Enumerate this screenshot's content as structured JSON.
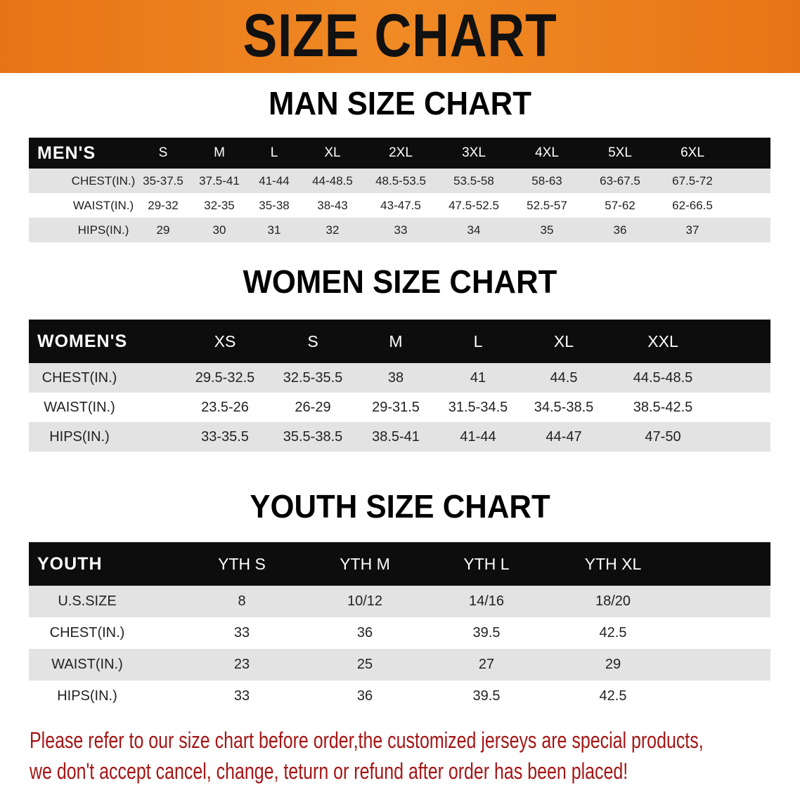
{
  "banner": {
    "title": "SIZE CHART",
    "color": "#ee8020"
  },
  "sections": [
    {
      "title": "MAN SIZE CHART",
      "header": [
        "MEN'S",
        "S",
        "M",
        "L",
        "XL",
        "2XL",
        "3XL",
        "4XL",
        "5XL",
        "6XL"
      ],
      "rows": [
        [
          "CHEST(IN.)",
          "35-37.5",
          "37.5-41",
          "41-44",
          "44-48.5",
          "48.5-53.5",
          "53.5-58",
          "58-63",
          "63-67.5",
          "67.5-72"
        ],
        [
          "WAIST(IN.)",
          "29-32",
          "32-35",
          "35-38",
          "38-43",
          "43-47.5",
          "47.5-52.5",
          "52.5-57",
          "57-62",
          "62-66.5"
        ],
        [
          "HIPS(IN.)",
          "29",
          "30",
          "31",
          "32",
          "33",
          "34",
          "35",
          "36",
          "37"
        ]
      ]
    },
    {
      "title": "WOMEN SIZE CHART",
      "header": [
        "WOMEN'S",
        "XS",
        "S",
        "M",
        "L",
        "XL",
        "XXL"
      ],
      "rows": [
        [
          "CHEST(IN.)",
          "29.5-32.5",
          "32.5-35.5",
          "38",
          "41",
          "44.5",
          "44.5-48.5"
        ],
        [
          "WAIST(IN.)",
          "23.5-26",
          "26-29",
          "29-31.5",
          "31.5-34.5",
          "34.5-38.5",
          "38.5-42.5"
        ],
        [
          "HIPS(IN.)",
          "33-35.5",
          "35.5-38.5",
          "38.5-41",
          "41-44",
          "44-47",
          "47-50"
        ]
      ]
    },
    {
      "title": "YOUTH SIZE CHART",
      "header": [
        "YOUTH",
        "YTH S",
        "YTH M",
        "YTH L",
        "YTH XL"
      ],
      "rows": [
        [
          "U.S.SIZE",
          "8",
          "10/12",
          "14/16",
          "18/20"
        ],
        [
          "CHEST(IN.)",
          "33",
          "36",
          "39.5",
          "42.5"
        ],
        [
          "WAIST(IN.)",
          "23",
          "25",
          "27",
          "29"
        ],
        [
          "HIPS(IN.)",
          "33",
          "36",
          "39.5",
          "42.5"
        ]
      ]
    }
  ],
  "footer": {
    "line1": "Please refer to our size chart before order,the customized jerseys are special products,",
    "line2": "we don't accept cancel, change, teturn or refund after order has been placed!",
    "color": "#a51616"
  }
}
